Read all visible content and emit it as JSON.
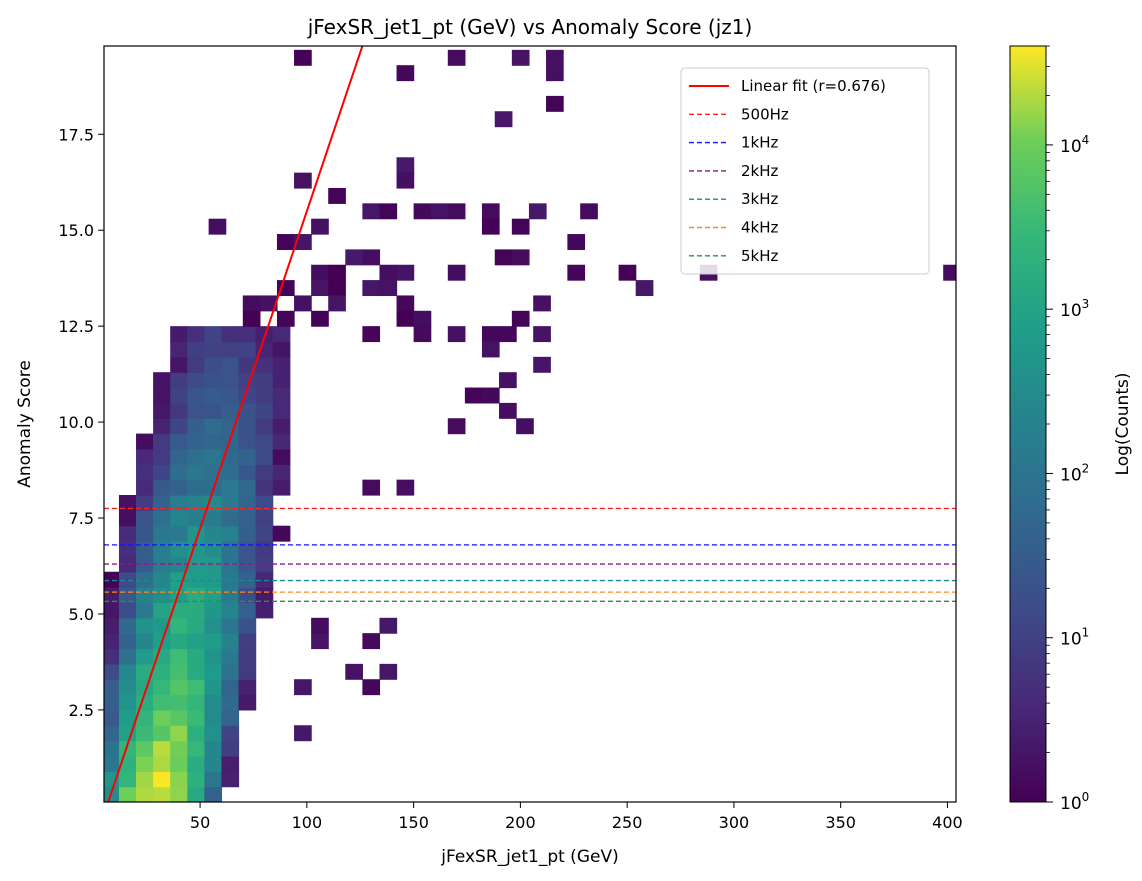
{
  "chart_data": {
    "type": "heatmap",
    "title": "jFexSR_jet1_pt (GeV) vs Anomaly Score (jz1)",
    "xlabel": "jFexSR_jet1_pt (GeV)",
    "ylabel": "Anomaly Score",
    "colorbar_label": "Log(Counts)",
    "colorbar_ticks": [
      {
        "base": "10",
        "exp": "0",
        "value": 1
      },
      {
        "base": "10",
        "exp": "1",
        "value": 10
      },
      {
        "base": "10",
        "exp": "2",
        "value": 100
      },
      {
        "base": "10",
        "exp": "3",
        "value": 1000
      },
      {
        "base": "10",
        "exp": "4",
        "value": 10000
      }
    ],
    "colorbar_range": [
      1,
      40000
    ],
    "colormap": "viridis",
    "xlim": [
      5,
      404
    ],
    "ylim": [
      0.1,
      19.8
    ],
    "xticks": [
      50,
      100,
      150,
      200,
      250,
      300,
      350,
      400
    ],
    "yticks": [
      2.5,
      5.0,
      7.5,
      10.0,
      12.5,
      15.0,
      17.5
    ],
    "ytick_labels": [
      "2.5",
      "5.0",
      "7.5",
      "10.0",
      "12.5",
      "15.0",
      "17.5"
    ],
    "bin_width_x": 8,
    "bin_width_y": 0.4,
    "density_model": {
      "center_base": 28,
      "center_slope": 3.0,
      "width_base": 15,
      "width_slope": 1.15,
      "peak_base": 4.6,
      "peak_slope": -0.3,
      "y_max_dense": 12.4,
      "seed": 7
    },
    "sparse_bins": [
      [
        98,
        19.5
      ],
      [
        146,
        19.1
      ],
      [
        170,
        19.5
      ],
      [
        200,
        19.5
      ],
      [
        216,
        19.5
      ],
      [
        216,
        19.1
      ],
      [
        216,
        18.3
      ],
      [
        192,
        17.9
      ],
      [
        146,
        16.7
      ],
      [
        146,
        16.3
      ],
      [
        98,
        16.3
      ],
      [
        114,
        15.9
      ],
      [
        130,
        15.5
      ],
      [
        138,
        15.5
      ],
      [
        154,
        15.5
      ],
      [
        162,
        15.5
      ],
      [
        170,
        15.5
      ],
      [
        186,
        15.5
      ],
      [
        208,
        15.5
      ],
      [
        232,
        15.5
      ],
      [
        58,
        15.1
      ],
      [
        106,
        15.1
      ],
      [
        186,
        15.1
      ],
      [
        200,
        15.1
      ],
      [
        90,
        14.7
      ],
      [
        98,
        14.7
      ],
      [
        226,
        14.7
      ],
      [
        122,
        14.3
      ],
      [
        130,
        14.3
      ],
      [
        192,
        14.3
      ],
      [
        200,
        14.3
      ],
      [
        106,
        13.9
      ],
      [
        114,
        13.9
      ],
      [
        138,
        13.9
      ],
      [
        146,
        13.9
      ],
      [
        170,
        13.9
      ],
      [
        226,
        13.9
      ],
      [
        250,
        13.9
      ],
      [
        288,
        13.9
      ],
      [
        402,
        13.9
      ],
      [
        90,
        13.5
      ],
      [
        106,
        13.5
      ],
      [
        114,
        13.5
      ],
      [
        130,
        13.5
      ],
      [
        138,
        13.5
      ],
      [
        258,
        13.5
      ],
      [
        82,
        13.1
      ],
      [
        98,
        13.1
      ],
      [
        114,
        13.1
      ],
      [
        146,
        13.1
      ],
      [
        210,
        13.1
      ],
      [
        74,
        13.1
      ],
      [
        74,
        12.7
      ],
      [
        90,
        12.7
      ],
      [
        106,
        12.7
      ],
      [
        146,
        12.7
      ],
      [
        154,
        12.7
      ],
      [
        200,
        12.7
      ],
      [
        130,
        12.3
      ],
      [
        154,
        12.3
      ],
      [
        170,
        12.3
      ],
      [
        186,
        12.3
      ],
      [
        194,
        12.3
      ],
      [
        210,
        12.3
      ],
      [
        186,
        11.9
      ],
      [
        194,
        11.1
      ],
      [
        210,
        11.5
      ],
      [
        178,
        10.7
      ],
      [
        186,
        10.7
      ],
      [
        194,
        10.3
      ],
      [
        170,
        9.9
      ],
      [
        202,
        9.9
      ],
      [
        130,
        8.3
      ],
      [
        146,
        8.3
      ],
      [
        98,
        3.1
      ],
      [
        106,
        4.3
      ],
      [
        106,
        4.7
      ],
      [
        130,
        4.3
      ],
      [
        138,
        4.7
      ],
      [
        122,
        3.5
      ],
      [
        138,
        3.5
      ],
      [
        130,
        3.1
      ],
      [
        98,
        1.9
      ]
    ],
    "fit": {
      "label": "Linear fit (r=0.676)",
      "color": "#ff0000",
      "x0": 7,
      "y0": 0.1,
      "x1": 126,
      "y1": 19.8
    },
    "hlines": [
      {
        "label": "500Hz",
        "y": 7.75,
        "color": "#ff2020"
      },
      {
        "label": "1kHz",
        "y": 6.8,
        "color": "#1010ff"
      },
      {
        "label": "2kHz",
        "y": 6.3,
        "color": "#8a1f8a"
      },
      {
        "label": "3kHz",
        "y": 5.87,
        "color": "#1a8a8a"
      },
      {
        "label": "4kHz",
        "y": 5.57,
        "color": "#ff8c1a"
      },
      {
        "label": "5kHz",
        "y": 5.33,
        "color": "#2e8b57"
      }
    ],
    "legend_position": "upper-right"
  }
}
